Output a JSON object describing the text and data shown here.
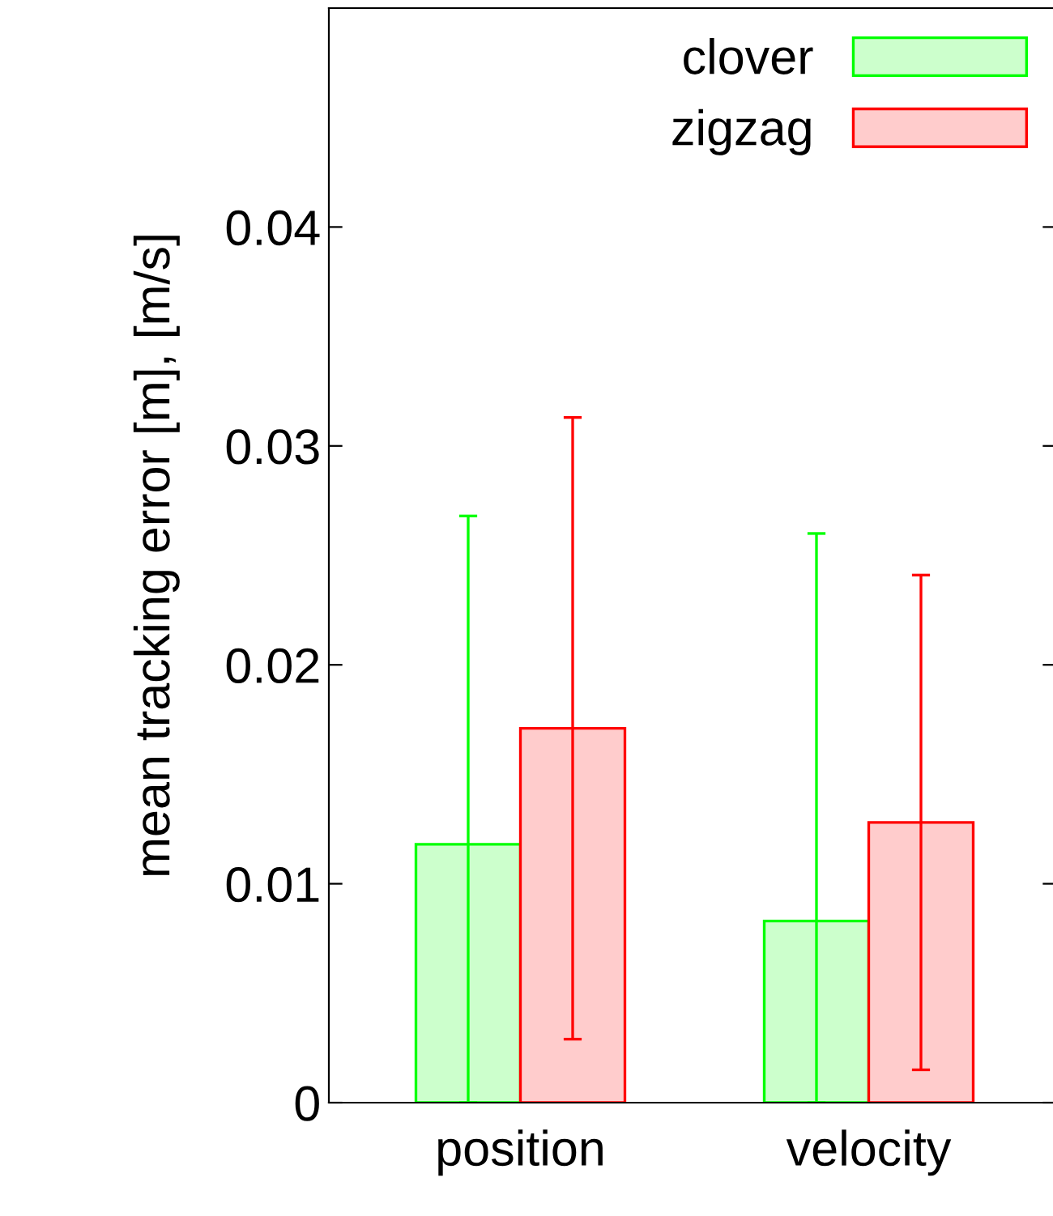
{
  "chart_data": {
    "type": "bar",
    "ylabel": "mean tracking error [m], [m/s]",
    "categories": [
      "position",
      "velocity"
    ],
    "series": [
      {
        "name": "clover",
        "color": "#00ff00",
        "values": [
          0.0118,
          0.0083
        ],
        "errors": [
          [
            0,
            0.0268
          ],
          [
            0,
            0.026
          ]
        ]
      },
      {
        "name": "zigzag",
        "color": "#ff0000",
        "values": [
          0.0171,
          0.0128
        ],
        "errors": [
          0.0142,
          0.0113
        ]
      }
    ],
    "ylim": [
      0,
      0.05
    ],
    "yticks": [
      0,
      0.01,
      0.02,
      0.03,
      0.04
    ],
    "grid": false,
    "legend": "top right"
  }
}
